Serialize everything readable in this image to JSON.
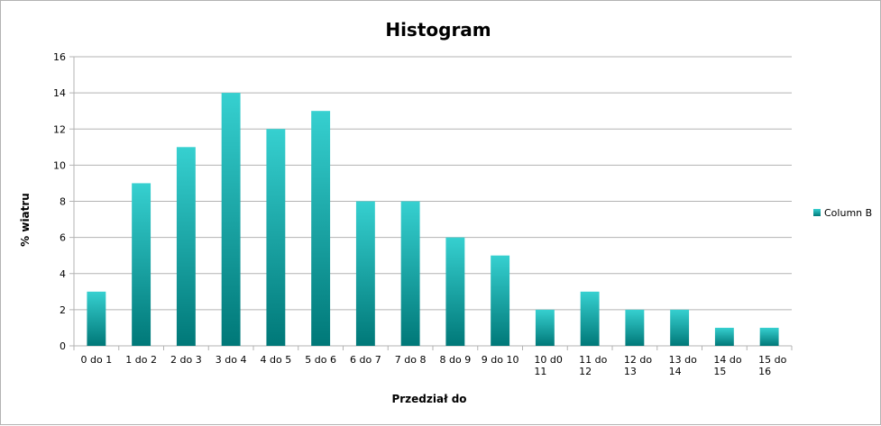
{
  "chart_data": {
    "type": "bar",
    "title": "Histogram",
    "xlabel": "Przedział do",
    "ylabel": "% wiatru",
    "categories": [
      [
        "0 do 1"
      ],
      [
        "1 do 2"
      ],
      [
        "2 do 3"
      ],
      [
        "3 do 4"
      ],
      [
        "4 do 5"
      ],
      [
        "5 do 6"
      ],
      [
        "6 do 7"
      ],
      [
        "7 do 8"
      ],
      [
        "8 do 9"
      ],
      [
        "9 do 10"
      ],
      [
        "10 d0",
        "11"
      ],
      [
        "11 do",
        "12"
      ],
      [
        "12 do",
        "13"
      ],
      [
        "13 do",
        "14"
      ],
      [
        "14 do",
        "15"
      ],
      [
        "15 do",
        "16"
      ]
    ],
    "series": [
      {
        "name": "Column B",
        "values": [
          3,
          9,
          11,
          14,
          12,
          13,
          8,
          8,
          6,
          5,
          2,
          3,
          2,
          2,
          1,
          1
        ]
      }
    ],
    "ylim": [
      0,
      16
    ],
    "yticks": [
      0,
      2,
      4,
      6,
      8,
      10,
      12,
      14,
      16
    ],
    "grid": true,
    "legend_position": "right",
    "colors": {
      "bar_top": "#36d0d0",
      "bar_bottom": "#007878",
      "grid": "#b3b3b3"
    }
  }
}
